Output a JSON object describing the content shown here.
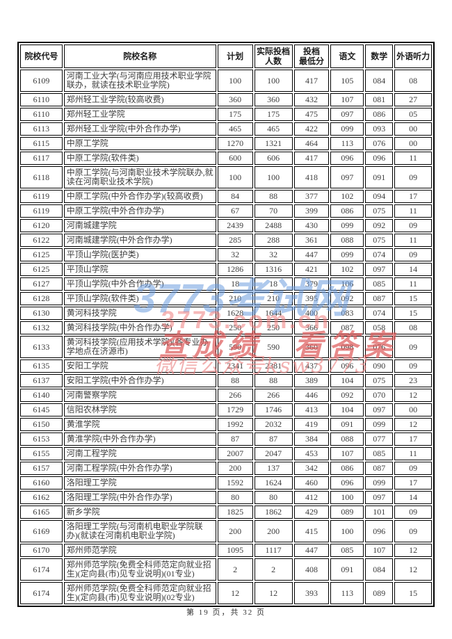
{
  "table": {
    "headers": [
      "院校代号",
      "院校名称",
      "计划",
      "实际投档\n人数",
      "投档\n最低分",
      "语文",
      "数学",
      "外语听力"
    ],
    "rows": [
      {
        "code": "6109",
        "name": "河南工业大学(与河南应用技术职业学院联办，就读在技术职业学院)",
        "plan": "100",
        "actual": "100",
        "min_score": "417",
        "chinese": "105",
        "math": "084",
        "listening": "08"
      },
      {
        "code": "6110",
        "name": "郑州轻工业学院(较高收费)",
        "plan": "360",
        "actual": "360",
        "min_score": "432",
        "chinese": "107",
        "math": "081",
        "listening": "27"
      },
      {
        "code": "6110",
        "name": "郑州轻工业学院",
        "plan": "175",
        "actual": "175",
        "min_score": "475",
        "chinese": "097",
        "math": "086",
        "listening": "05"
      },
      {
        "code": "6113",
        "name": "郑州轻工业学院(中外合作办学)",
        "plan": "465",
        "actual": "465",
        "min_score": "422",
        "chinese": "099",
        "math": "093",
        "listening": "00"
      },
      {
        "code": "6115",
        "name": "中原工学院",
        "plan": "1270",
        "actual": "1321",
        "min_score": "464",
        "chinese": "113",
        "math": "076",
        "listening": "00"
      },
      {
        "code": "6117",
        "name": "中原工学院(软件类)",
        "plan": "600",
        "actual": "606",
        "min_score": "417",
        "chinese": "096",
        "math": "096",
        "listening": "11"
      },
      {
        "code": "6118",
        "name": "中原工学院(与河南职业技术学院联办,就读在河南职业技术学院)",
        "plan": "100",
        "actual": "100",
        "min_score": "418",
        "chinese": "097",
        "math": "091",
        "listening": "09"
      },
      {
        "code": "6119",
        "name": "中原工学院(中外合作办学)(较高收费)",
        "plan": "84",
        "actual": "88",
        "min_score": "377",
        "chinese": "102",
        "math": "094",
        "listening": "17"
      },
      {
        "code": "6119",
        "name": "中原工学院(中外合作办学)",
        "plan": "67",
        "actual": "70",
        "min_score": "399",
        "chinese": "086",
        "math": "075",
        "listening": "11"
      },
      {
        "code": "6120",
        "name": "河南城建学院",
        "plan": "2439",
        "actual": "2488",
        "min_score": "430",
        "chinese": "099",
        "math": "092",
        "listening": "09"
      },
      {
        "code": "6122",
        "name": "河南城建学院(中外合作办学)",
        "plan": "285",
        "actual": "288",
        "min_score": "361",
        "chinese": "088",
        "math": "075",
        "listening": "11"
      },
      {
        "code": "6125",
        "name": "平顶山学院(医护类)",
        "plan": "32",
        "actual": "32",
        "min_score": "447",
        "chinese": "099",
        "math": "074",
        "listening": "09"
      },
      {
        "code": "6125",
        "name": "平顶山学院",
        "plan": "1286",
        "actual": "1316",
        "min_score": "421",
        "chinese": "102",
        "math": "097",
        "listening": "14"
      },
      {
        "code": "6127",
        "name": "平顶山学院(中外合作办学)",
        "plan": "18",
        "actual": "18",
        "min_score": "379",
        "chinese": "106",
        "math": "085",
        "listening": "11"
      },
      {
        "code": "6128",
        "name": "平顶山学院(软件类)",
        "plan": "210",
        "actual": "210",
        "min_score": "395",
        "chinese": "092",
        "math": "087",
        "listening": "15"
      },
      {
        "code": "6130",
        "name": "黄河科技学院",
        "plan": "1628",
        "actual": "1644",
        "min_score": "400",
        "chinese": "083",
        "math": "074",
        "listening": "15"
      },
      {
        "code": "6132",
        "name": "黄河科技学院(中外合作办学)",
        "plan": "250",
        "actual": "250",
        "min_score": "366",
        "chinese": "087",
        "math": "058",
        "listening": "08"
      },
      {
        "code": "6133",
        "name": "黄河科技学院(应用技术学院)(各专业办学地点在济源市)",
        "plan": "590",
        "actual": "590",
        "min_score": "360",
        "chinese": "098",
        "math": "076",
        "listening": "09"
      },
      {
        "code": "6135",
        "name": "安阳工学院",
        "plan": "2341",
        "actual": "2381",
        "min_score": "437",
        "chinese": "096",
        "math": "090",
        "listening": "09"
      },
      {
        "code": "6137",
        "name": "安阳工学院(中外合作办学)",
        "plan": "88",
        "actual": "88",
        "min_score": "389",
        "chinese": "104",
        "math": "075",
        "listening": "23"
      },
      {
        "code": "6140",
        "name": "河南警察学院",
        "plan": "266",
        "actual": "266",
        "min_score": "446",
        "chinese": "092",
        "math": "070",
        "listening": "12"
      },
      {
        "code": "6145",
        "name": "信阳农林学院",
        "plan": "1729",
        "actual": "1746",
        "min_score": "413",
        "chinese": "104",
        "math": "097",
        "listening": "00"
      },
      {
        "code": "6150",
        "name": "黄淮学院",
        "plan": "1992",
        "actual": "2032",
        "min_score": "419",
        "chinese": "091",
        "math": "099",
        "listening": "12"
      },
      {
        "code": "6153",
        "name": "黄淮学院(中外合作办学)",
        "plan": "87",
        "actual": "87",
        "min_score": "384",
        "chinese": "088",
        "math": "077",
        "listening": "17"
      },
      {
        "code": "6155",
        "name": "河南工程学院",
        "plan": "2007",
        "actual": "2047",
        "min_score": "453",
        "chinese": "107",
        "math": "085",
        "listening": "11"
      },
      {
        "code": "6157",
        "name": "河南工程学院(中外合作办学)",
        "plan": "200",
        "actual": "137",
        "min_score": "342",
        "chinese": "086",
        "math": "087",
        "listening": "09"
      },
      {
        "code": "6160",
        "name": "洛阳理工学院",
        "plan": "1592",
        "actual": "1624",
        "min_score": "460",
        "chinese": "096",
        "math": "099",
        "listening": "17"
      },
      {
        "code": "6162",
        "name": "洛阳理工学院(中外合作办学)",
        "plan": "80",
        "actual": "80",
        "min_score": "412",
        "chinese": "100",
        "math": "097",
        "listening": "14"
      },
      {
        "code": "6165",
        "name": "新乡学院",
        "plan": "1825",
        "actual": "1862",
        "min_score": "429",
        "chinese": "089",
        "math": "101",
        "listening": "09"
      },
      {
        "code": "6169",
        "name": "洛阳理工学院(与河南机电职业学院联办)(就读在河南机电职业学院)",
        "plan": "200",
        "actual": "200",
        "min_score": "415",
        "chinese": "100",
        "math": "096",
        "listening": "09"
      },
      {
        "code": "6170",
        "name": "郑州师范学院",
        "plan": "1095",
        "actual": "1117",
        "min_score": "447",
        "chinese": "085",
        "math": "107",
        "listening": "12"
      },
      {
        "code": "6174",
        "name": "郑州师范学院(免费全科师范定向就业招生)(定向县(市)见专业说明)(01专业)",
        "plan": "2",
        "actual": "2",
        "min_score": "408",
        "chinese": "091",
        "math": "084",
        "listening": "12"
      },
      {
        "code": "6174",
        "name": "郑州师范学院(免费全科师范定向就业招生)(定向县(市)见专业说明)(02专业)",
        "plan": "12",
        "actual": "12",
        "min_score": "393",
        "chinese": "113",
        "math": "089",
        "listening": "15"
      }
    ]
  },
  "watermarks": {
    "site_name": "3773考试网",
    "site_url": "3773.com.cn",
    "slogan": "查成绩 看答案",
    "wechat": "微信公众号ksw3773",
    "blue_color": "#6d9ee0",
    "url_color": "#f07f7f",
    "slogan_color": "#dd5858",
    "wechat_color": "#ec8888"
  },
  "footer": {
    "page_info": "第 19 页，共 32 页"
  }
}
